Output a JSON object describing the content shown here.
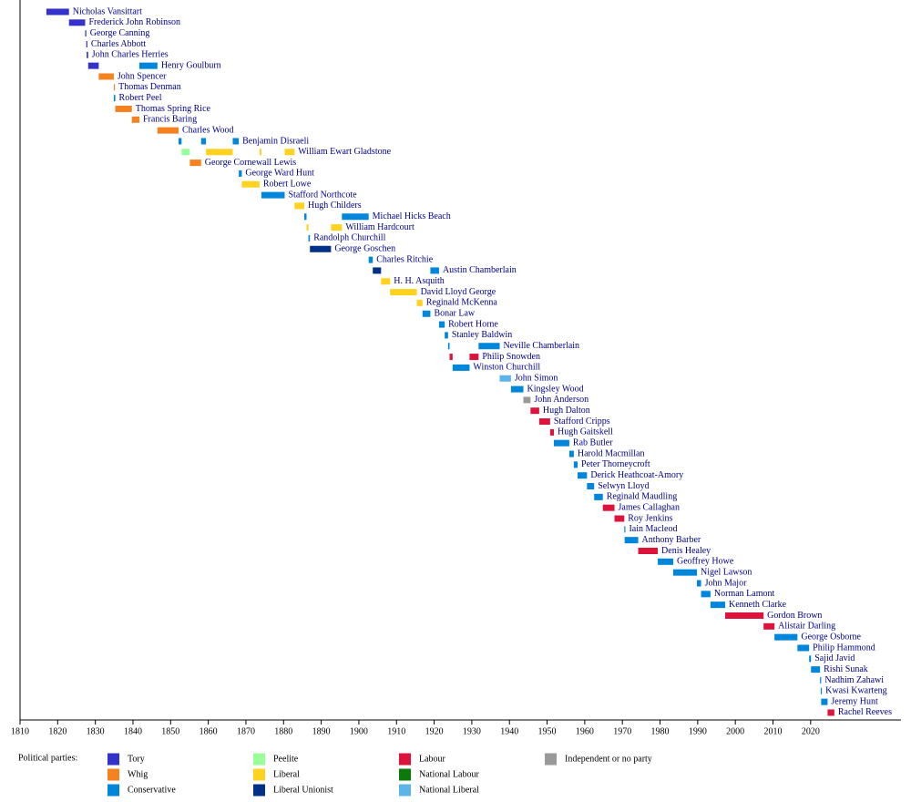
{
  "chart_data": {
    "type": "timeline",
    "xlim": [
      1810,
      2044
    ],
    "xticks": [
      1810,
      1820,
      1830,
      1840,
      1850,
      1860,
      1870,
      1880,
      1890,
      1900,
      1910,
      1920,
      1930,
      1940,
      1950,
      1960,
      1970,
      1980,
      1990,
      2000,
      2010,
      2020
    ],
    "legend_title": "Political parties:",
    "parties": [
      {
        "name": "Tory",
        "color": "#3333cc"
      },
      {
        "name": "Whig",
        "color": "#f5821f"
      },
      {
        "name": "Conservative",
        "color": "#0087dc"
      },
      {
        "name": "Peelite",
        "color": "#99ff99"
      },
      {
        "name": "Liberal",
        "color": "#ffd21f"
      },
      {
        "name": "Liberal Unionist",
        "color": "#003087"
      },
      {
        "name": "Labour",
        "color": "#dc143c"
      },
      {
        "name": "National Labour",
        "color": "#0b7a0b"
      },
      {
        "name": "National Liberal",
        "color": "#5bb4ea"
      },
      {
        "name": "Independent or no party",
        "color": "#999999"
      }
    ],
    "rows": [
      {
        "name": "Nicholas Vansittart",
        "bars": [
          {
            "start": 1817,
            "end": 1823,
            "party": "Tory"
          }
        ]
      },
      {
        "name": "Frederick John Robinson",
        "bars": [
          {
            "start": 1823,
            "end": 1827.3,
            "party": "Tory"
          }
        ]
      },
      {
        "name": "George Canning",
        "bars": [
          {
            "start": 1827.3,
            "end": 1827.6,
            "party": "Tory"
          }
        ]
      },
      {
        "name": "Charles Abbott",
        "bars": [
          {
            "start": 1827.6,
            "end": 1827.7,
            "party": "Tory"
          }
        ]
      },
      {
        "name": "John Charles Herries",
        "bars": [
          {
            "start": 1827.7,
            "end": 1828.1,
            "party": "Tory"
          }
        ]
      },
      {
        "name": "Henry Goulburn",
        "bars": [
          {
            "start": 1828.1,
            "end": 1830.9,
            "party": "Tory"
          },
          {
            "start": 1841.7,
            "end": 1846.5,
            "party": "Conservative"
          }
        ]
      },
      {
        "name": "John Spencer",
        "bars": [
          {
            "start": 1830.9,
            "end": 1834.9,
            "party": "Whig"
          }
        ]
      },
      {
        "name": "Thomas Denman",
        "bars": [
          {
            "start": 1834.9,
            "end": 1835,
            "party": "Whig"
          }
        ]
      },
      {
        "name": "Robert Peel",
        "bars": [
          {
            "start": 1834.9,
            "end": 1835.3,
            "party": "Conservative"
          }
        ]
      },
      {
        "name": "Thomas Spring Rice",
        "bars": [
          {
            "start": 1835.3,
            "end": 1839.7,
            "party": "Whig"
          }
        ]
      },
      {
        "name": "Francis Baring",
        "bars": [
          {
            "start": 1839.7,
            "end": 1841.7,
            "party": "Whig"
          }
        ]
      },
      {
        "name": "Charles Wood",
        "bars": [
          {
            "start": 1846.5,
            "end": 1852.1,
            "party": "Whig"
          }
        ]
      },
      {
        "name": "Benjamin Disraeli",
        "bars": [
          {
            "start": 1852.1,
            "end": 1852.9,
            "party": "Conservative"
          },
          {
            "start": 1858.1,
            "end": 1859.4,
            "party": "Conservative"
          },
          {
            "start": 1866.5,
            "end": 1868.1,
            "party": "Conservative"
          }
        ]
      },
      {
        "name": "William Ewart Gladstone",
        "bars": [
          {
            "start": 1852.9,
            "end": 1855.1,
            "party": "Peelite"
          },
          {
            "start": 1859.4,
            "end": 1866.5,
            "party": "Liberal"
          },
          {
            "start": 1873.6,
            "end": 1874.1,
            "party": "Liberal"
          },
          {
            "start": 1880.3,
            "end": 1882.9,
            "party": "Liberal"
          }
        ]
      },
      {
        "name": "George Cornewall Lewis",
        "bars": [
          {
            "start": 1855.1,
            "end": 1858.1,
            "party": "Whig"
          }
        ]
      },
      {
        "name": "George Ward Hunt",
        "bars": [
          {
            "start": 1868.1,
            "end": 1868.9,
            "party": "Conservative"
          }
        ]
      },
      {
        "name": "Robert Lowe",
        "bars": [
          {
            "start": 1868.9,
            "end": 1873.6,
            "party": "Liberal"
          }
        ]
      },
      {
        "name": "Stafford Northcote",
        "bars": [
          {
            "start": 1874.1,
            "end": 1880.3,
            "party": "Conservative"
          }
        ]
      },
      {
        "name": "Hugh Childers",
        "bars": [
          {
            "start": 1882.9,
            "end": 1885.5,
            "party": "Liberal"
          }
        ]
      },
      {
        "name": "Michael Hicks Beach",
        "bars": [
          {
            "start": 1885.5,
            "end": 1886.1,
            "party": "Conservative"
          },
          {
            "start": 1895.5,
            "end": 1902.6,
            "party": "Conservative"
          }
        ]
      },
      {
        "name": "William Hardcourt",
        "bars": [
          {
            "start": 1886.1,
            "end": 1886.6,
            "party": "Liberal"
          },
          {
            "start": 1892.6,
            "end": 1895.5,
            "party": "Liberal"
          }
        ]
      },
      {
        "name": "Randolph Churchill",
        "bars": [
          {
            "start": 1886.6,
            "end": 1887,
            "party": "Conservative"
          }
        ]
      },
      {
        "name": "George Goschen",
        "bars": [
          {
            "start": 1887,
            "end": 1892.6,
            "party": "Liberal Unionist"
          }
        ]
      },
      {
        "name": "Charles Ritchie",
        "bars": [
          {
            "start": 1902.6,
            "end": 1903.7,
            "party": "Conservative"
          }
        ]
      },
      {
        "name": "Austin Chamberlain",
        "bars": [
          {
            "start": 1903.7,
            "end": 1905.9,
            "party": "Liberal Unionist"
          },
          {
            "start": 1919,
            "end": 1921.3,
            "party": "Conservative"
          }
        ]
      },
      {
        "name": "H. H. Asquith",
        "bars": [
          {
            "start": 1905.9,
            "end": 1908.3,
            "party": "Liberal"
          }
        ]
      },
      {
        "name": "David Lloyd George",
        "bars": [
          {
            "start": 1908.3,
            "end": 1915.4,
            "party": "Liberal"
          }
        ]
      },
      {
        "name": "Reginald McKenna",
        "bars": [
          {
            "start": 1915.4,
            "end": 1916.9,
            "party": "Liberal"
          }
        ]
      },
      {
        "name": "Bonar Law",
        "bars": [
          {
            "start": 1916.9,
            "end": 1919,
            "party": "Conservative"
          }
        ]
      },
      {
        "name": "Robert Horne",
        "bars": [
          {
            "start": 1921.3,
            "end": 1922.8,
            "party": "Conservative"
          }
        ]
      },
      {
        "name": "Stanley Baldwin",
        "bars": [
          {
            "start": 1922.8,
            "end": 1923.7,
            "party": "Conservative"
          }
        ]
      },
      {
        "name": "Neville Chamberlain",
        "bars": [
          {
            "start": 1923.7,
            "end": 1924.1,
            "party": "Conservative"
          },
          {
            "start": 1931.8,
            "end": 1937.4,
            "party": "Conservative"
          }
        ]
      },
      {
        "name": "Philip Snowden",
        "bars": [
          {
            "start": 1924.1,
            "end": 1924.9,
            "party": "Labour"
          },
          {
            "start": 1929.4,
            "end": 1931.8,
            "party": "Labour"
          }
        ]
      },
      {
        "name": "Winston Churchill",
        "bars": [
          {
            "start": 1924.9,
            "end": 1929.4,
            "party": "Conservative"
          }
        ]
      },
      {
        "name": "John Simon",
        "bars": [
          {
            "start": 1937.4,
            "end": 1940.4,
            "party": "National Liberal"
          }
        ]
      },
      {
        "name": "Kingsley Wood",
        "bars": [
          {
            "start": 1940.4,
            "end": 1943.7,
            "party": "Conservative"
          }
        ]
      },
      {
        "name": "John Anderson",
        "bars": [
          {
            "start": 1943.7,
            "end": 1945.6,
            "party": "Independent or no party"
          }
        ]
      },
      {
        "name": "Hugh Dalton",
        "bars": [
          {
            "start": 1945.6,
            "end": 1947.9,
            "party": "Labour"
          }
        ]
      },
      {
        "name": "Stafford Cripps",
        "bars": [
          {
            "start": 1947.9,
            "end": 1950.8,
            "party": "Labour"
          }
        ]
      },
      {
        "name": "Hugh Gaitskell",
        "bars": [
          {
            "start": 1950.8,
            "end": 1951.8,
            "party": "Labour"
          }
        ]
      },
      {
        "name": "Rab Butler",
        "bars": [
          {
            "start": 1951.8,
            "end": 1955.9,
            "party": "Conservative"
          }
        ]
      },
      {
        "name": "Harold Macmillan",
        "bars": [
          {
            "start": 1955.9,
            "end": 1957.1,
            "party": "Conservative"
          }
        ]
      },
      {
        "name": "Peter Thorneycroft",
        "bars": [
          {
            "start": 1957.1,
            "end": 1958.1,
            "party": "Conservative"
          }
        ]
      },
      {
        "name": "Derick Heathcoat-Amory",
        "bars": [
          {
            "start": 1958.1,
            "end": 1960.6,
            "party": "Conservative"
          }
        ]
      },
      {
        "name": "Selwyn Lloyd",
        "bars": [
          {
            "start": 1960.6,
            "end": 1962.5,
            "party": "Conservative"
          }
        ]
      },
      {
        "name": "Reginald Maudling",
        "bars": [
          {
            "start": 1962.5,
            "end": 1964.8,
            "party": "Conservative"
          }
        ]
      },
      {
        "name": "James Callaghan",
        "bars": [
          {
            "start": 1964.8,
            "end": 1967.9,
            "party": "Labour"
          }
        ]
      },
      {
        "name": "Roy Jenkins",
        "bars": [
          {
            "start": 1967.9,
            "end": 1970.5,
            "party": "Labour"
          }
        ]
      },
      {
        "name": "Iain Macleod",
        "bars": [
          {
            "start": 1970.5,
            "end": 1970.6,
            "party": "Conservative"
          }
        ]
      },
      {
        "name": "Anthony Barber",
        "bars": [
          {
            "start": 1970.6,
            "end": 1974.2,
            "party": "Conservative"
          }
        ]
      },
      {
        "name": "Denis Healey",
        "bars": [
          {
            "start": 1974.2,
            "end": 1979.4,
            "party": "Labour"
          }
        ]
      },
      {
        "name": "Geoffrey Howe",
        "bars": [
          {
            "start": 1979.4,
            "end": 1983.5,
            "party": "Conservative"
          }
        ]
      },
      {
        "name": "Nigel Lawson",
        "bars": [
          {
            "start": 1983.5,
            "end": 1989.8,
            "party": "Conservative"
          }
        ]
      },
      {
        "name": "John Major",
        "bars": [
          {
            "start": 1989.8,
            "end": 1990.9,
            "party": "Conservative"
          }
        ]
      },
      {
        "name": "Norman Lamont",
        "bars": [
          {
            "start": 1990.9,
            "end": 1993.4,
            "party": "Conservative"
          }
        ]
      },
      {
        "name": "Kenneth Clarke",
        "bars": [
          {
            "start": 1993.4,
            "end": 1997.3,
            "party": "Conservative"
          }
        ]
      },
      {
        "name": "Gordon Brown",
        "bars": [
          {
            "start": 1997.3,
            "end": 2007.5,
            "party": "Labour"
          }
        ]
      },
      {
        "name": "Alistair Darling",
        "bars": [
          {
            "start": 2007.5,
            "end": 2010.4,
            "party": "Labour"
          }
        ]
      },
      {
        "name": "George Osborne",
        "bars": [
          {
            "start": 2010.4,
            "end": 2016.5,
            "party": "Conservative"
          }
        ]
      },
      {
        "name": "Philip Hammond",
        "bars": [
          {
            "start": 2016.5,
            "end": 2019.6,
            "party": "Conservative"
          }
        ]
      },
      {
        "name": "Sajid Javid",
        "bars": [
          {
            "start": 2019.6,
            "end": 2020.1,
            "party": "Conservative"
          }
        ]
      },
      {
        "name": "Rishi Sunak",
        "bars": [
          {
            "start": 2020.1,
            "end": 2022.5,
            "party": "Conservative"
          }
        ]
      },
      {
        "name": "Nadhim Zahawi",
        "bars": [
          {
            "start": 2022.5,
            "end": 2022.7,
            "party": "Conservative"
          }
        ]
      },
      {
        "name": "Kwasi Kwarteng",
        "bars": [
          {
            "start": 2022.7,
            "end": 2022.8,
            "party": "Conservative"
          }
        ]
      },
      {
        "name": "Jeremy Hunt",
        "bars": [
          {
            "start": 2022.8,
            "end": 2024.5,
            "party": "Conservative"
          }
        ]
      },
      {
        "name": "Rachel Reeves",
        "bars": [
          {
            "start": 2024.5,
            "end": 2026.3,
            "party": "Labour"
          }
        ]
      }
    ]
  }
}
